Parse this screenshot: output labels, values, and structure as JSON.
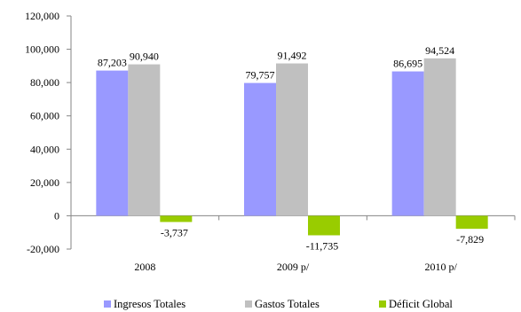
{
  "chart_data": {
    "type": "bar",
    "categories": [
      "2008",
      "2009 p/",
      "2010 p/"
    ],
    "series": [
      {
        "name": "Ingresos Totales",
        "color": "#9999ff",
        "values": [
          87203,
          79757,
          86695
        ],
        "labels": [
          "87,203",
          "79,757",
          "86,695"
        ]
      },
      {
        "name": "Gastos Totales",
        "color": "#c0c0c0",
        "values": [
          90940,
          91492,
          94524
        ],
        "labels": [
          "90,940",
          "91,492",
          "94,524"
        ]
      },
      {
        "name": "Déficit Global",
        "color": "#99cc00",
        "values": [
          -3737,
          -11735,
          -7829
        ],
        "labels": [
          "-3,737",
          "-11,735",
          "-7,829"
        ]
      }
    ],
    "ylim": [
      -20000,
      120000
    ],
    "yticks": [
      -20000,
      0,
      20000,
      40000,
      60000,
      80000,
      100000,
      120000
    ],
    "ytick_labels": [
      "-20,000",
      "0",
      "20,000",
      "40,000",
      "60,000",
      "80,000",
      "100,000",
      "120,000"
    ],
    "grid": false,
    "legend_position": "bottom"
  }
}
